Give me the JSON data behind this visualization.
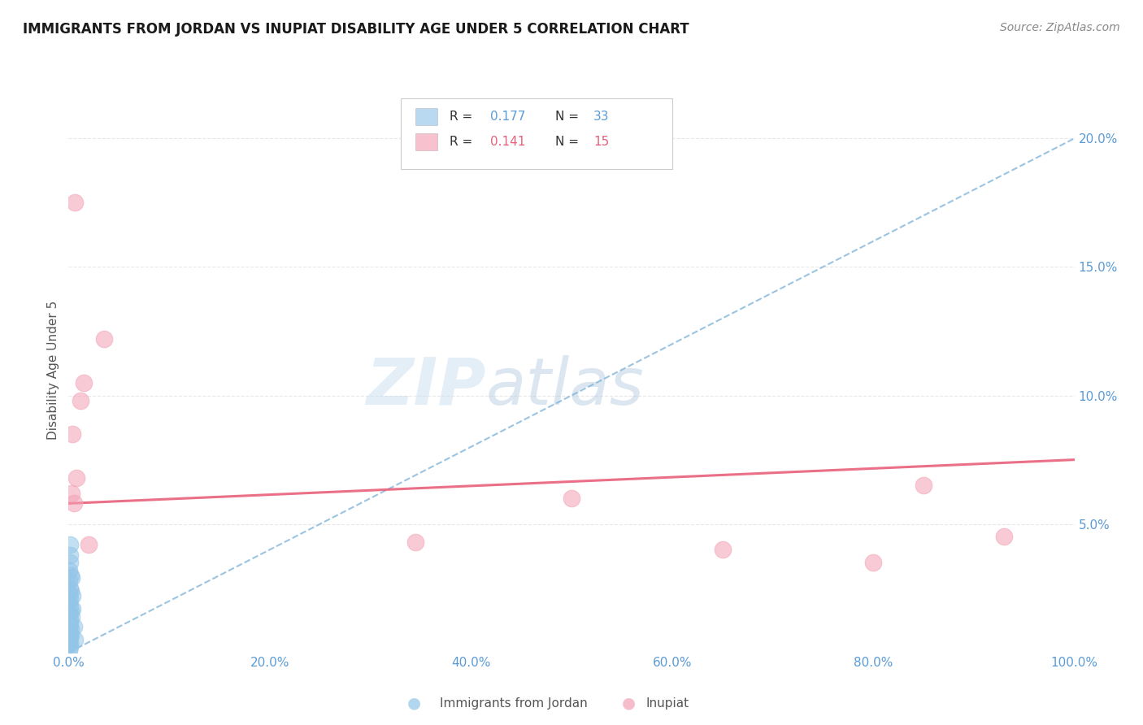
{
  "title": "IMMIGRANTS FROM JORDAN VS INUPIAT DISABILITY AGE UNDER 5 CORRELATION CHART",
  "source": "Source: ZipAtlas.com",
  "ylabel_label": "Disability Age Under 5",
  "x_ticklabels": [
    "0.0%",
    "20.0%",
    "40.0%",
    "60.0%",
    "80.0%",
    "100.0%"
  ],
  "x_ticks": [
    0,
    20,
    40,
    60,
    80,
    100
  ],
  "y_ticklabels": [
    "5.0%",
    "10.0%",
    "15.0%",
    "20.0%"
  ],
  "y_ticks": [
    5,
    10,
    15,
    20
  ],
  "xlim": [
    0,
    100
  ],
  "ylim": [
    0,
    22
  ],
  "legend_r1": "0.177",
  "legend_n1": "33",
  "legend_r2": "0.141",
  "legend_n2": "15",
  "blue_color": "#92c5e8",
  "pink_color": "#f4a0b5",
  "blue_line_color": "#7ab0d8",
  "pink_line_color": "#e8607a",
  "blue_scatter_x": [
    0.05,
    0.05,
    0.05,
    0.05,
    0.05,
    0.05,
    0.05,
    0.05,
    0.05,
    0.05,
    0.05,
    0.1,
    0.1,
    0.1,
    0.1,
    0.1,
    0.1,
    0.1,
    0.15,
    0.15,
    0.15,
    0.15,
    0.2,
    0.2,
    0.2,
    0.25,
    0.25,
    0.3,
    0.3,
    0.35,
    0.4,
    0.5,
    0.6
  ],
  "blue_scatter_y": [
    0.1,
    0.3,
    0.5,
    0.8,
    1.0,
    1.2,
    1.5,
    2.0,
    2.3,
    2.8,
    3.2,
    0.2,
    0.6,
    1.1,
    1.8,
    2.5,
    3.5,
    4.2,
    0.4,
    1.3,
    2.1,
    3.8,
    0.7,
    1.6,
    3.0,
    0.9,
    2.4,
    1.4,
    2.9,
    1.7,
    2.2,
    1.0,
    0.5
  ],
  "pink_scatter_x": [
    0.3,
    0.4,
    0.5,
    0.6,
    2.0,
    3.5,
    34.5,
    50.0,
    65.0,
    80.0,
    85.0,
    93.0,
    1.5,
    1.2,
    0.8
  ],
  "pink_scatter_y": [
    6.2,
    8.5,
    5.8,
    17.5,
    4.2,
    12.2,
    4.3,
    6.0,
    4.0,
    3.5,
    6.5,
    4.5,
    10.5,
    9.8,
    6.8
  ],
  "blue_line_x0": 0,
  "blue_line_y0": 0.0,
  "blue_line_x1": 100,
  "blue_line_y1": 20.0,
  "pink_line_x0": 0,
  "pink_line_y0": 5.8,
  "pink_line_x1": 100,
  "pink_line_y1": 7.5,
  "watermark_zip": "ZIP",
  "watermark_atlas": "atlas",
  "background_color": "#ffffff",
  "grid_color": "#e8e8e8",
  "tick_color": "#5b9bd5",
  "title_color": "#1a1a1a",
  "source_color": "#888888",
  "ylabel_color": "#555555",
  "bottom_label1": "Immigrants from Jordan",
  "bottom_label2": "Inupiat"
}
